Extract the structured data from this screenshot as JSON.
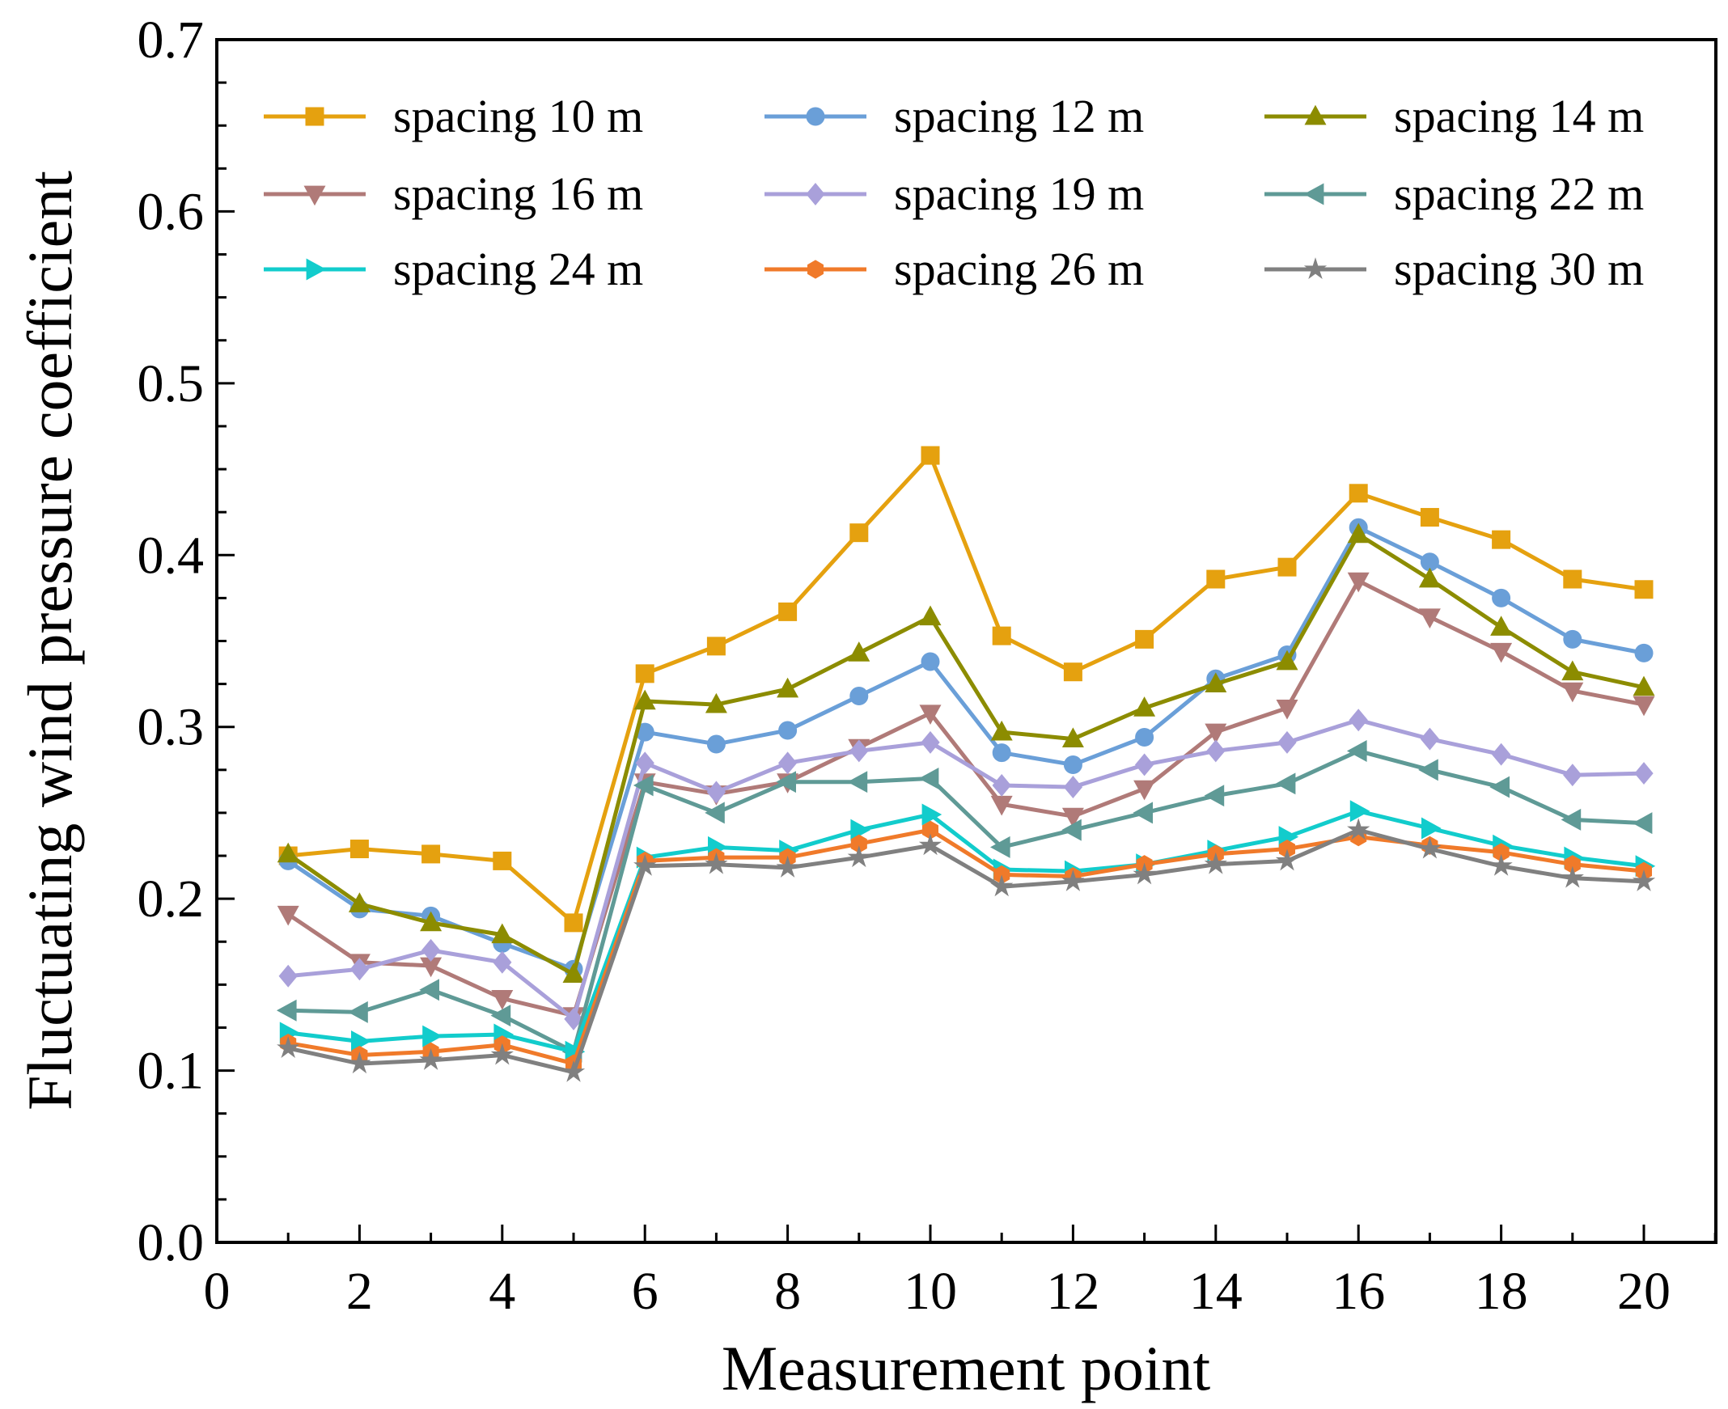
{
  "chart_data": {
    "type": "line",
    "title": "",
    "xlabel": "Measurement point",
    "ylabel": "Fluctuating wind pressure coefficient",
    "xlim": [
      0,
      21
    ],
    "ylim": [
      0.0,
      0.7
    ],
    "xticks": [
      "0",
      "2",
      "4",
      "6",
      "8",
      "10",
      "12",
      "14",
      "16",
      "18",
      "20"
    ],
    "yticks": [
      "0.0",
      "0.1",
      "0.2",
      "0.3",
      "0.4",
      "0.5",
      "0.6",
      "0.7"
    ],
    "grid": false,
    "legend_placement": "top",
    "x": [
      1,
      2,
      3,
      4,
      5,
      6,
      7,
      8,
      9,
      10,
      11,
      12,
      13,
      14,
      15,
      16,
      17,
      18,
      19,
      20
    ],
    "series": [
      {
        "name": "spacing 10 m",
        "color": "#E5A10F",
        "marker": "square",
        "values": [
          0.225,
          0.229,
          0.226,
          0.222,
          0.186,
          0.331,
          0.347,
          0.367,
          0.413,
          0.458,
          0.353,
          0.332,
          0.351,
          0.386,
          0.393,
          0.436,
          0.422,
          0.409,
          0.386,
          0.38
        ]
      },
      {
        "name": "spacing 12 m",
        "color": "#6A9FD8",
        "marker": "circle",
        "values": [
          0.222,
          0.194,
          0.19,
          0.174,
          0.159,
          0.297,
          0.29,
          0.298,
          0.318,
          0.338,
          0.285,
          0.278,
          0.294,
          0.328,
          0.342,
          0.416,
          0.396,
          0.375,
          0.351,
          0.343
        ]
      },
      {
        "name": "spacing 14 m",
        "color": "#8C8C00",
        "marker": "triangle-up",
        "values": [
          0.226,
          0.197,
          0.186,
          0.179,
          0.156,
          0.315,
          0.313,
          0.322,
          0.343,
          0.364,
          0.297,
          0.293,
          0.311,
          0.325,
          0.338,
          0.412,
          0.386,
          0.358,
          0.332,
          0.323
        ]
      },
      {
        "name": "spacing 16 m",
        "color": "#B07A78",
        "marker": "triangle-down",
        "values": [
          0.191,
          0.163,
          0.161,
          0.142,
          0.132,
          0.268,
          0.261,
          0.268,
          0.288,
          0.308,
          0.255,
          0.248,
          0.264,
          0.297,
          0.311,
          0.385,
          0.364,
          0.344,
          0.321,
          0.313
        ]
      },
      {
        "name": "spacing 19 m",
        "color": "#A9A0DA",
        "marker": "diamond",
        "values": [
          0.155,
          0.159,
          0.17,
          0.163,
          0.13,
          0.279,
          0.262,
          0.279,
          0.286,
          0.291,
          0.266,
          0.265,
          0.278,
          0.286,
          0.291,
          0.304,
          0.293,
          0.284,
          0.272,
          0.273
        ]
      },
      {
        "name": "spacing 22 m",
        "color": "#5F9A96",
        "marker": "triangle-left",
        "values": [
          0.135,
          0.134,
          0.147,
          0.132,
          0.111,
          0.266,
          0.25,
          0.268,
          0.268,
          0.27,
          0.23,
          0.24,
          0.25,
          0.26,
          0.267,
          0.286,
          0.275,
          0.265,
          0.246,
          0.244
        ]
      },
      {
        "name": "spacing 24 m",
        "color": "#12CCCC",
        "marker": "triangle-right",
        "values": [
          0.122,
          0.117,
          0.12,
          0.121,
          0.111,
          0.224,
          0.23,
          0.228,
          0.24,
          0.249,
          0.217,
          0.216,
          0.22,
          0.228,
          0.236,
          0.251,
          0.241,
          0.231,
          0.224,
          0.219
        ]
      },
      {
        "name": "spacing 26 m",
        "color": "#F07A2A",
        "marker": "hexagon",
        "values": [
          0.116,
          0.109,
          0.111,
          0.115,
          0.104,
          0.222,
          0.224,
          0.224,
          0.232,
          0.24,
          0.214,
          0.213,
          0.22,
          0.226,
          0.229,
          0.236,
          0.231,
          0.227,
          0.22,
          0.216
        ]
      },
      {
        "name": "spacing 30 m",
        "color": "#808080",
        "marker": "star",
        "values": [
          0.113,
          0.104,
          0.106,
          0.109,
          0.099,
          0.219,
          0.22,
          0.218,
          0.224,
          0.231,
          0.207,
          0.21,
          0.214,
          0.22,
          0.222,
          0.24,
          0.229,
          0.219,
          0.212,
          0.21
        ]
      }
    ]
  }
}
